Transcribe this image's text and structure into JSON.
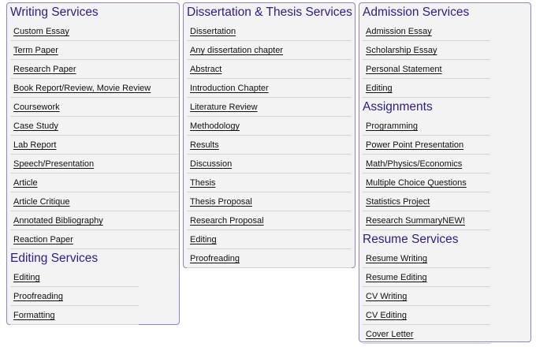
{
  "colors": {
    "heading": "#2a1d8c",
    "border": "#8a86c8",
    "panel_bg": "#f3f3f4",
    "divider": "#d2d2d2"
  },
  "writing": {
    "title": "Writing Services",
    "items": [
      "Custom Essay",
      "Term Paper",
      "Research Paper",
      "Book Report/Review, Movie Review",
      "Coursework",
      "Case Study",
      "Lab Report",
      "Speech/Presentation",
      "Article",
      "Article Critique",
      "Annotated Bibliography",
      "Reaction Paper"
    ]
  },
  "editing": {
    "title": "Editing Services",
    "items": [
      "Editing",
      "Proofreading",
      "Formatting"
    ]
  },
  "dissertation": {
    "title": "Dissertation & Thesis Services",
    "items": [
      "Dissertation",
      "Any dissertation chapter",
      "Abstract",
      "Introduction Chapter",
      "Literature Review",
      "Methodology",
      "Results",
      "Discussion",
      "Thesis",
      "Thesis Proposal",
      "Research Proposal",
      "Editing",
      "Proofreading"
    ]
  },
  "admission": {
    "title": "Admission Services",
    "items": [
      "Admission Essay",
      "Scholarship Essay",
      "Personal Statement",
      "Editing"
    ]
  },
  "assignments": {
    "title": "Assignments",
    "items": [
      "Programming",
      "Power Point Presentation",
      "Math/Physics/Economics",
      "Multiple Choice Questions",
      "Statistics Project",
      "Research SummaryNEW!"
    ]
  },
  "resume": {
    "title": "Resume Services",
    "items": [
      "Resume Writing",
      "Resume Editing",
      "CV Writing",
      "CV Editing",
      "Cover Letter"
    ]
  }
}
